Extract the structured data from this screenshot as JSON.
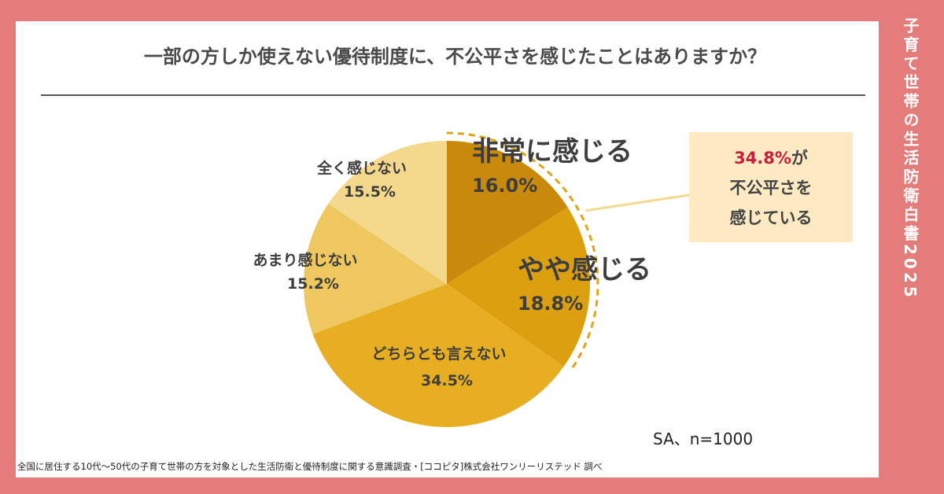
{
  "chart_data": {
    "type": "pie",
    "title": "一部の方しか使えない優待制度に、不公平さを感じたことはありますか？",
    "slices": [
      {
        "label": "非常に感じる",
        "value": 16.0,
        "value_label": "16.0%",
        "color": "#c98a0c"
      },
      {
        "label": "やや感じる",
        "value": 18.8,
        "value_label": "18.8%",
        "color": "#dc9f10"
      },
      {
        "label": "どちらとも言えない",
        "value": 34.5,
        "value_label": "34.5%",
        "color": "#e8ae22"
      },
      {
        "label": "あまり感じない",
        "value": 15.2,
        "value_label": "15.2%",
        "color": "#efc75f"
      },
      {
        "label": "全く感じない",
        "value": 15.5,
        "value_label": "15.5%",
        "color": "#f4d98c"
      }
    ],
    "annotation": {
      "value": "34.8%",
      "suffix": "が",
      "line2": "不公平さを",
      "line3": "感じている"
    }
  },
  "sample_note": "SA、n=1000",
  "side_title": "子育て世帯の生活防衛白書2025",
  "source": "全国に居住する10代〜50代の子育て世帯の方を対象とした生活防衛と優待制度に関する意識調査・[ココピタ]株式会社ワンリーリステッド 調べ"
}
